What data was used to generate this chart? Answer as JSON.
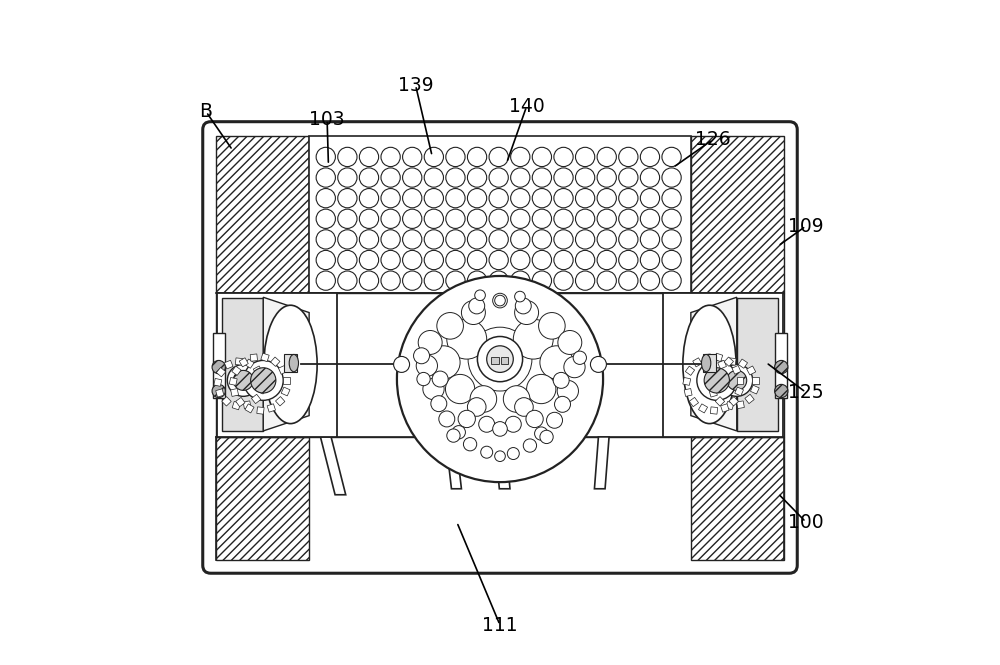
{
  "bg_color": "#ffffff",
  "line_color": "#222222",
  "fig_w": 10.0,
  "fig_h": 6.65,
  "annotations": {
    "111": {
      "lp": [
        0.5,
        0.06
      ],
      "ae": [
        0.435,
        0.215
      ]
    },
    "100": {
      "lp": [
        0.96,
        0.215
      ],
      "ae": [
        0.918,
        0.258
      ]
    },
    "125": {
      "lp": [
        0.96,
        0.41
      ],
      "ae": [
        0.9,
        0.455
      ]
    },
    "109": {
      "lp": [
        0.96,
        0.66
      ],
      "ae": [
        0.918,
        0.63
      ]
    },
    "126": {
      "lp": [
        0.82,
        0.79
      ],
      "ae": [
        0.76,
        0.748
      ]
    },
    "140": {
      "lp": [
        0.54,
        0.84
      ],
      "ae": [
        0.51,
        0.755
      ]
    },
    "139": {
      "lp": [
        0.373,
        0.872
      ],
      "ae": [
        0.398,
        0.765
      ]
    },
    "103": {
      "lp": [
        0.24,
        0.82
      ],
      "ae": [
        0.242,
        0.752
      ]
    },
    "B": {
      "lp": [
        0.058,
        0.832
      ],
      "ae": [
        0.098,
        0.774
      ]
    }
  }
}
